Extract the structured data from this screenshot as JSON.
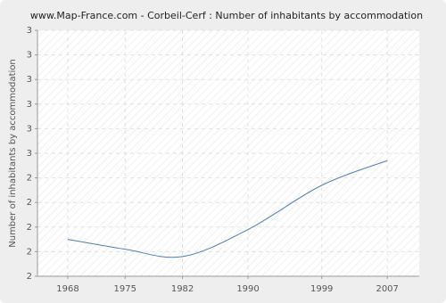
{
  "chart_data": {
    "type": "line",
    "title": "www.Map-France.com - Corbeil-Cerf : Number of inhabitants by accommodation",
    "y_label": "Number of inhabitants by accommodation",
    "x": [
      1968,
      1975,
      1982,
      1990,
      1999,
      2007
    ],
    "series": [
      {
        "name": "Number of inhabitants by accommodation",
        "color": "#4f7fb0",
        "values": [
          2.15,
          2.11,
          2.08,
          2.19,
          2.37,
          2.47
        ]
      }
    ],
    "xlim": [
      1964.3,
      2010.9
    ],
    "xticks": [
      1968,
      1975,
      1982,
      1990,
      1999,
      2007
    ],
    "ylim": [
      2.0,
      3.0
    ],
    "yticks": [
      {
        "value": 2.0,
        "label": "2"
      },
      {
        "value": 2.1,
        "label": "2"
      },
      {
        "value": 2.2,
        "label": "2"
      },
      {
        "value": 2.3,
        "label": "2"
      },
      {
        "value": 2.4,
        "label": "2"
      },
      {
        "value": 2.5,
        "label": "3"
      },
      {
        "value": 2.6,
        "label": "3"
      },
      {
        "value": 2.7,
        "label": "3"
      },
      {
        "value": 2.8,
        "label": "3"
      },
      {
        "value": 2.9,
        "label": "3"
      },
      {
        "value": 3.0,
        "label": "3"
      }
    ],
    "grid": true
  }
}
